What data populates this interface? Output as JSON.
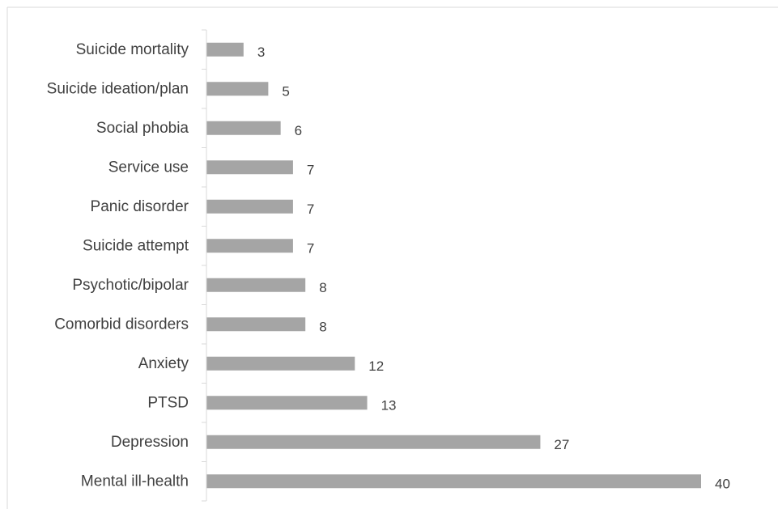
{
  "chart_data": {
    "type": "bar",
    "orientation": "horizontal",
    "categories": [
      "Suicide mortality",
      "Suicide ideation/plan",
      "Social phobia",
      "Service use",
      "Panic disorder",
      "Suicide attempt",
      "Psychotic/bipolar",
      "Comorbid disorders",
      "Anxiety",
      "PTSD",
      "Depression",
      "Mental ill-health"
    ],
    "values": [
      3,
      5,
      6,
      7,
      7,
      7,
      8,
      8,
      12,
      13,
      27,
      40
    ],
    "xlim": [
      0,
      40
    ],
    "data_labels": true,
    "grid": false,
    "legend": "none",
    "colors": {
      "bar": "#a5a5a5",
      "axis": "#d9d9d9",
      "text": "#404040",
      "border": "#d9d9d9"
    }
  }
}
